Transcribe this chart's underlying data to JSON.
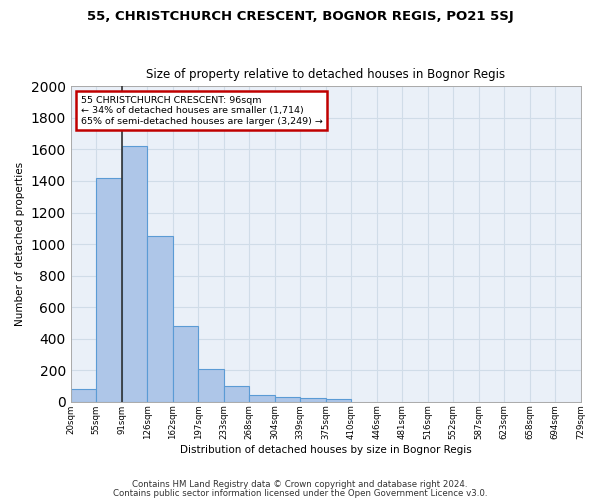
{
  "title": "55, CHRISTCHURCH CRESCENT, BOGNOR REGIS, PO21 5SJ",
  "subtitle": "Size of property relative to detached houses in Bognor Regis",
  "xlabel": "Distribution of detached houses by size in Bognor Regis",
  "ylabel": "Number of detached properties",
  "bins": [
    20,
    55,
    91,
    126,
    162,
    197,
    233,
    268,
    304,
    339,
    375,
    410,
    446,
    481,
    516,
    552,
    587,
    623,
    658,
    694,
    729
  ],
  "counts": [
    80,
    1420,
    1620,
    1050,
    480,
    205,
    100,
    42,
    28,
    22,
    18,
    0,
    0,
    0,
    0,
    0,
    0,
    0,
    0,
    0
  ],
  "bar_color": "#aec6e8",
  "bar_edge_color": "#5b9bd5",
  "grid_color": "#d0dce8",
  "bg_color": "#eaf0f8",
  "marker_line_color": "#333333",
  "annotation_line1": "55 CHRISTCHURCH CRESCENT: 96sqm",
  "annotation_line2": "← 34% of detached houses are smaller (1,714)",
  "annotation_line3": "65% of semi-detached houses are larger (3,249) →",
  "annotation_box_edge_color": "#c00000",
  "ylim": [
    0,
    2000
  ],
  "yticks": [
    0,
    200,
    400,
    600,
    800,
    1000,
    1200,
    1400,
    1600,
    1800,
    2000
  ],
  "footer1": "Contains HM Land Registry data © Crown copyright and database right 2024.",
  "footer2": "Contains public sector information licensed under the Open Government Licence v3.0."
}
